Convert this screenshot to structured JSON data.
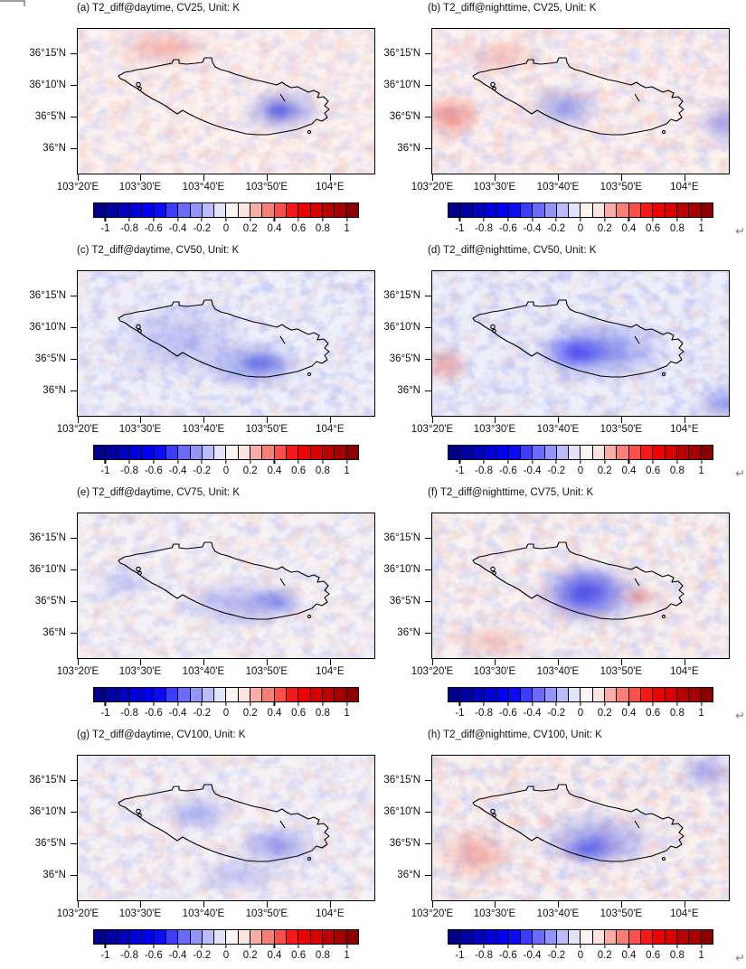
{
  "figure": {
    "panels": [
      {
        "id": "a",
        "title": "(a) T2_diff@daytime, CV25, Unit: K"
      },
      {
        "id": "b",
        "title": "(b) T2_diff@nighttime, CV25, Unit: K"
      },
      {
        "id": "c",
        "title": "(c) T2_diff@daytime, CV50, Unit: K"
      },
      {
        "id": "d",
        "title": "(d) T2_diff@nighttime, CV50, Unit: K"
      },
      {
        "id": "e",
        "title": "(e) T2_diff@daytime, CV75, Unit: K"
      },
      {
        "id": "f",
        "title": "(f) T2_diff@nighttime, CV75, Unit: K"
      },
      {
        "id": "g",
        "title": "(g) T2_diff@daytime, CV100, Unit: K"
      },
      {
        "id": "h",
        "title": "(h) T2_diff@nighttime, CV100, Unit: K"
      }
    ],
    "axis": {
      "y_ticks": [
        "36°15'N",
        "36°10'N",
        "36°5'N",
        "36°N"
      ],
      "x_ticks": [
        "103°20'E",
        "103°30'E",
        "103°40'E",
        "103°50'E",
        "104°E"
      ]
    },
    "colorbar": {
      "tick_labels": [
        "-1",
        "-0.8",
        "-0.6",
        "-0.4",
        "-0.2",
        "0",
        "0.2",
        "0.4",
        "0.6",
        "0.8",
        "1"
      ],
      "colors": [
        "#00008b",
        "#0000a3",
        "#0000c0",
        "#0000d8",
        "#0000f0",
        "#0a0aff",
        "#3c3cff",
        "#6a6aff",
        "#9494ff",
        "#bcbcfa",
        "#e2e2fb",
        "#fdf4f2",
        "#fce4e1",
        "#f9aba5",
        "#f87f78",
        "#f9504a",
        "#fb1814",
        "#ee0000",
        "#d60000",
        "#bc0000",
        "#a40000",
        "#8b0000"
      ],
      "unit": "K"
    }
  },
  "marks": {
    "line_break_glyph": "↵"
  },
  "chart_data": {
    "type": "heatmap",
    "layout": "4 rows x 2 columns of lat-lon map panels, each with its own diverging colorbar",
    "panels": [
      {
        "label": "(a)",
        "variable": "T2_diff",
        "time": "daytime",
        "scenario": "CV25",
        "unit": "K"
      },
      {
        "label": "(b)",
        "variable": "T2_diff",
        "time": "nighttime",
        "scenario": "CV25",
        "unit": "K"
      },
      {
        "label": "(c)",
        "variable": "T2_diff",
        "time": "daytime",
        "scenario": "CV50",
        "unit": "K"
      },
      {
        "label": "(d)",
        "variable": "T2_diff",
        "time": "nighttime",
        "scenario": "CV50",
        "unit": "K"
      },
      {
        "label": "(e)",
        "variable": "T2_diff",
        "time": "daytime",
        "scenario": "CV75",
        "unit": "K"
      },
      {
        "label": "(f)",
        "variable": "T2_diff",
        "time": "nighttime",
        "scenario": "CV75",
        "unit": "K"
      },
      {
        "label": "(g)",
        "variable": "T2_diff",
        "time": "daytime",
        "scenario": "CV100",
        "unit": "K"
      },
      {
        "label": "(h)",
        "variable": "T2_diff",
        "time": "nighttime",
        "scenario": "CV100",
        "unit": "K"
      }
    ],
    "x_ticks": [
      "103°20'E",
      "103°30'E",
      "103°40'E",
      "103°50'E",
      "104°E"
    ],
    "y_ticks": [
      "36°15'N",
      "36°10'N",
      "36°5'N",
      "36°N"
    ],
    "colorbar": {
      "range": [
        -1.1,
        1.1
      ],
      "step": 0.1,
      "tick_labels": [
        "-1",
        "-0.8",
        "-0.6",
        "-0.4",
        "-0.2",
        "0",
        "0.2",
        "0.4",
        "0.6",
        "0.8",
        "1"
      ],
      "colors": [
        "#00008b",
        "#0000a3",
        "#0000c0",
        "#0000d8",
        "#0000f0",
        "#0a0aff",
        "#3c3cff",
        "#6a6aff",
        "#9494ff",
        "#bcbcfa",
        "#e2e2fb",
        "#fdf4f2",
        "#fce4e1",
        "#f9aba5",
        "#f87f78",
        "#f9504a",
        "#fb1814",
        "#ee0000",
        "#d60000",
        "#bc0000",
        "#a40000",
        "#8b0000"
      ],
      "unit": "K"
    },
    "overlay": "black irregular closed boundary contour of the urban basin drawn on every panel"
  }
}
